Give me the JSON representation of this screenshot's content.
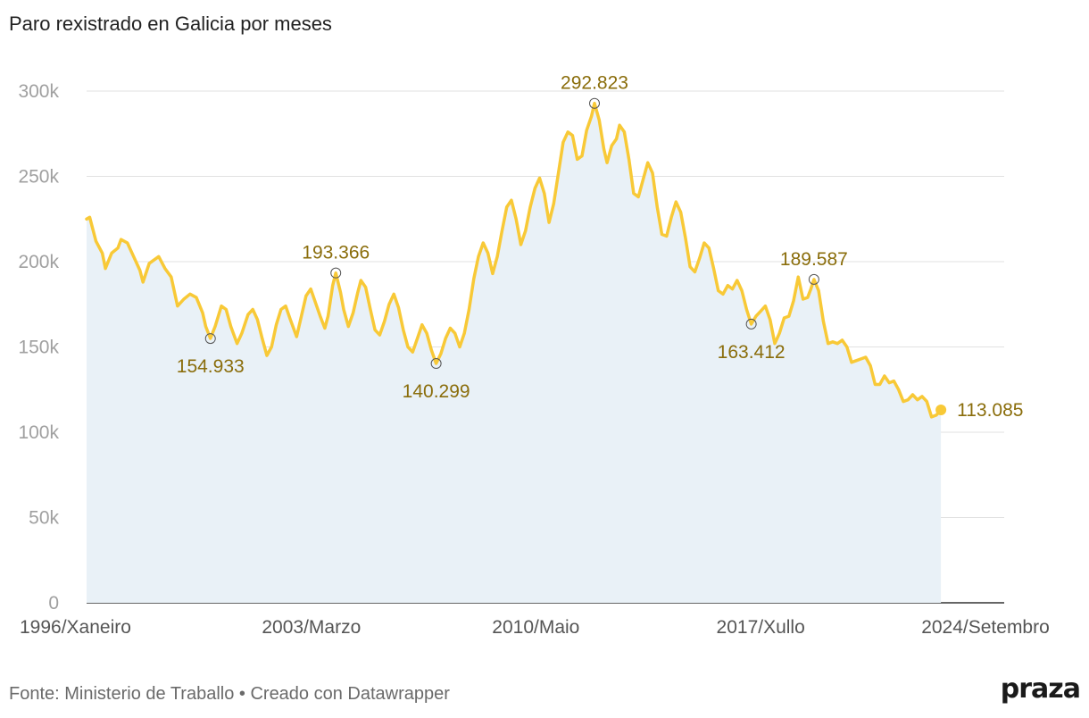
{
  "title": "Paro rexistrado en Galicia por meses",
  "footer": "Fonte: Ministerio de Traballo • Creado con Datawrapper",
  "logo": "praza",
  "colors": {
    "line": "#f8c937",
    "area": "#e9f1f7",
    "grid": "#e2e2e2",
    "annotation": "#8a6d0b"
  },
  "chart_data": {
    "type": "area",
    "title": "Paro rexistrado en Galicia por meses",
    "xlabel": "",
    "ylabel": "",
    "ylim": [
      0,
      300000
    ],
    "yticks": [
      0,
      50000,
      100000,
      150000,
      200000,
      250000,
      300000
    ],
    "ytick_labels": [
      "0",
      "50k",
      "100k",
      "150k",
      "200k",
      "250k",
      "300k"
    ],
    "x_range": [
      1996.0,
      2024.67
    ],
    "xticks": [
      {
        "x": 1996.0,
        "label": "1996/Xaneiro"
      },
      {
        "x": 2003.17,
        "label": "2003/Marzo"
      },
      {
        "x": 2010.33,
        "label": "2010/Maio"
      },
      {
        "x": 2017.5,
        "label": "2017/Xullo"
      },
      {
        "x": 2024.67,
        "label": "2024/Setembro"
      }
    ],
    "grid": true,
    "series": [
      {
        "values": [
          [
            1996.0,
            225000
          ],
          [
            1996.1,
            226000
          ],
          [
            1996.3,
            212000
          ],
          [
            1996.5,
            205000
          ],
          [
            1996.6,
            196000
          ],
          [
            1996.8,
            205000
          ],
          [
            1997.0,
            208000
          ],
          [
            1997.1,
            213000
          ],
          [
            1997.3,
            211000
          ],
          [
            1997.5,
            203000
          ],
          [
            1997.7,
            195000
          ],
          [
            1997.8,
            188000
          ],
          [
            1998.0,
            199000
          ],
          [
            1998.3,
            203000
          ],
          [
            1998.5,
            196000
          ],
          [
            1998.7,
            191000
          ],
          [
            1998.9,
            174000
          ],
          [
            1999.1,
            178000
          ],
          [
            1999.3,
            181000
          ],
          [
            1999.5,
            179000
          ],
          [
            1999.7,
            170000
          ],
          [
            1999.8,
            162000
          ],
          [
            1999.95,
            155000
          ],
          [
            2000.1,
            162000
          ],
          [
            2000.3,
            174000
          ],
          [
            2000.45,
            172000
          ],
          [
            2000.6,
            162000
          ],
          [
            2000.8,
            152000
          ],
          [
            2000.95,
            158000
          ],
          [
            2001.15,
            169000
          ],
          [
            2001.3,
            172000
          ],
          [
            2001.45,
            166000
          ],
          [
            2001.6,
            155000
          ],
          [
            2001.75,
            145000
          ],
          [
            2001.9,
            150000
          ],
          [
            2002.05,
            163000
          ],
          [
            2002.2,
            172000
          ],
          [
            2002.35,
            174000
          ],
          [
            2002.5,
            166000
          ],
          [
            2002.7,
            156000
          ],
          [
            2002.85,
            168000
          ],
          [
            2003.0,
            180000
          ],
          [
            2003.15,
            184000
          ],
          [
            2003.3,
            176000
          ],
          [
            2003.45,
            168000
          ],
          [
            2003.6,
            161000
          ],
          [
            2003.7,
            168000
          ],
          [
            2003.85,
            186000
          ],
          [
            2003.95,
            193366
          ],
          [
            2004.1,
            182000
          ],
          [
            2004.2,
            172000
          ],
          [
            2004.35,
            162000
          ],
          [
            2004.5,
            170000
          ],
          [
            2004.65,
            182000
          ],
          [
            2004.75,
            189000
          ],
          [
            2004.9,
            185000
          ],
          [
            2005.05,
            172000
          ],
          [
            2005.2,
            160000
          ],
          [
            2005.35,
            157000
          ],
          [
            2005.5,
            165000
          ],
          [
            2005.65,
            175000
          ],
          [
            2005.8,
            181000
          ],
          [
            2005.95,
            173000
          ],
          [
            2006.1,
            160000
          ],
          [
            2006.25,
            150000
          ],
          [
            2006.4,
            147000
          ],
          [
            2006.55,
            155000
          ],
          [
            2006.7,
            163000
          ],
          [
            2006.85,
            158000
          ],
          [
            2007.0,
            148000
          ],
          [
            2007.15,
            140299
          ],
          [
            2007.3,
            146000
          ],
          [
            2007.45,
            155000
          ],
          [
            2007.6,
            161000
          ],
          [
            2007.75,
            158000
          ],
          [
            2007.9,
            150000
          ],
          [
            2008.05,
            158000
          ],
          [
            2008.2,
            172000
          ],
          [
            2008.35,
            190000
          ],
          [
            2008.5,
            203000
          ],
          [
            2008.65,
            211000
          ],
          [
            2008.8,
            205000
          ],
          [
            2008.95,
            193000
          ],
          [
            2009.1,
            203000
          ],
          [
            2009.25,
            218000
          ],
          [
            2009.4,
            232000
          ],
          [
            2009.55,
            236000
          ],
          [
            2009.7,
            225000
          ],
          [
            2009.85,
            210000
          ],
          [
            2010.0,
            218000
          ],
          [
            2010.15,
            232000
          ],
          [
            2010.3,
            243000
          ],
          [
            2010.45,
            249000
          ],
          [
            2010.6,
            240000
          ],
          [
            2010.75,
            223000
          ],
          [
            2010.9,
            234000
          ],
          [
            2011.05,
            252000
          ],
          [
            2011.2,
            270000
          ],
          [
            2011.35,
            276000
          ],
          [
            2011.5,
            274000
          ],
          [
            2011.65,
            260000
          ],
          [
            2011.8,
            262000
          ],
          [
            2011.95,
            277000
          ],
          [
            2012.1,
            285000
          ],
          [
            2012.2,
            292823
          ],
          [
            2012.35,
            283000
          ],
          [
            2012.5,
            266000
          ],
          [
            2012.6,
            258000
          ],
          [
            2012.75,
            268000
          ],
          [
            2012.9,
            272000
          ],
          [
            2013.0,
            280000
          ],
          [
            2013.15,
            276000
          ],
          [
            2013.3,
            260000
          ],
          [
            2013.45,
            240000
          ],
          [
            2013.6,
            238000
          ],
          [
            2013.75,
            248000
          ],
          [
            2013.9,
            258000
          ],
          [
            2014.05,
            252000
          ],
          [
            2014.2,
            232000
          ],
          [
            2014.35,
            216000
          ],
          [
            2014.5,
            215000
          ],
          [
            2014.65,
            226000
          ],
          [
            2014.8,
            235000
          ],
          [
            2014.95,
            229000
          ],
          [
            2015.1,
            214000
          ],
          [
            2015.25,
            197000
          ],
          [
            2015.4,
            194000
          ],
          [
            2015.55,
            202000
          ],
          [
            2015.7,
            211000
          ],
          [
            2015.85,
            208000
          ],
          [
            2016.0,
            196000
          ],
          [
            2016.15,
            183000
          ],
          [
            2016.3,
            181000
          ],
          [
            2016.45,
            186000
          ],
          [
            2016.6,
            184000
          ],
          [
            2016.75,
            189000
          ],
          [
            2016.9,
            183000
          ],
          [
            2017.05,
            172000
          ],
          [
            2017.2,
            163412
          ],
          [
            2017.35,
            168000
          ],
          [
            2017.5,
            171000
          ],
          [
            2017.65,
            174000
          ],
          [
            2017.8,
            166000
          ],
          [
            2017.95,
            152000
          ],
          [
            2018.1,
            158000
          ],
          [
            2018.25,
            167000
          ],
          [
            2018.4,
            168000
          ],
          [
            2018.55,
            177000
          ],
          [
            2018.7,
            191000
          ],
          [
            2018.85,
            178000
          ],
          [
            2019.0,
            179000
          ],
          [
            2019.1,
            184000
          ],
          [
            2019.2,
            189587
          ],
          [
            2019.35,
            183000
          ],
          [
            2019.5,
            165000
          ],
          [
            2019.65,
            152000
          ],
          [
            2019.8,
            153000
          ],
          [
            2019.95,
            152000
          ],
          [
            2020.1,
            154000
          ],
          [
            2020.25,
            150000
          ],
          [
            2020.4,
            141000
          ],
          [
            2020.55,
            142000
          ],
          [
            2020.7,
            143000
          ],
          [
            2020.85,
            144000
          ],
          [
            2021.0,
            139000
          ],
          [
            2021.15,
            128000
          ],
          [
            2021.3,
            128000
          ],
          [
            2021.45,
            133000
          ],
          [
            2021.6,
            129000
          ],
          [
            2021.75,
            130000
          ],
          [
            2021.9,
            125000
          ],
          [
            2022.05,
            118000
          ],
          [
            2022.2,
            119000
          ],
          [
            2022.35,
            122000
          ],
          [
            2022.5,
            119000
          ],
          [
            2022.65,
            121000
          ],
          [
            2022.8,
            118000
          ],
          [
            2022.95,
            109000
          ],
          [
            2023.1,
            110000
          ],
          [
            2023.25,
            113085
          ]
        ]
      }
    ],
    "annotations": [
      {
        "x": 1999.95,
        "y": 154933,
        "label": "154.933",
        "position": "below"
      },
      {
        "x": 2003.95,
        "y": 193366,
        "label": "193.366",
        "position": "above"
      },
      {
        "x": 2007.15,
        "y": 140299,
        "label": "140.299",
        "position": "below"
      },
      {
        "x": 2012.2,
        "y": 292823,
        "label": "292.823",
        "position": "above"
      },
      {
        "x": 2017.2,
        "y": 163412,
        "label": "163.412",
        "position": "below"
      },
      {
        "x": 2019.2,
        "y": 189587,
        "label": "189.587",
        "position": "above"
      },
      {
        "x": 2023.25,
        "y": 113085,
        "label": "113.085",
        "position": "right",
        "last": true
      }
    ]
  }
}
